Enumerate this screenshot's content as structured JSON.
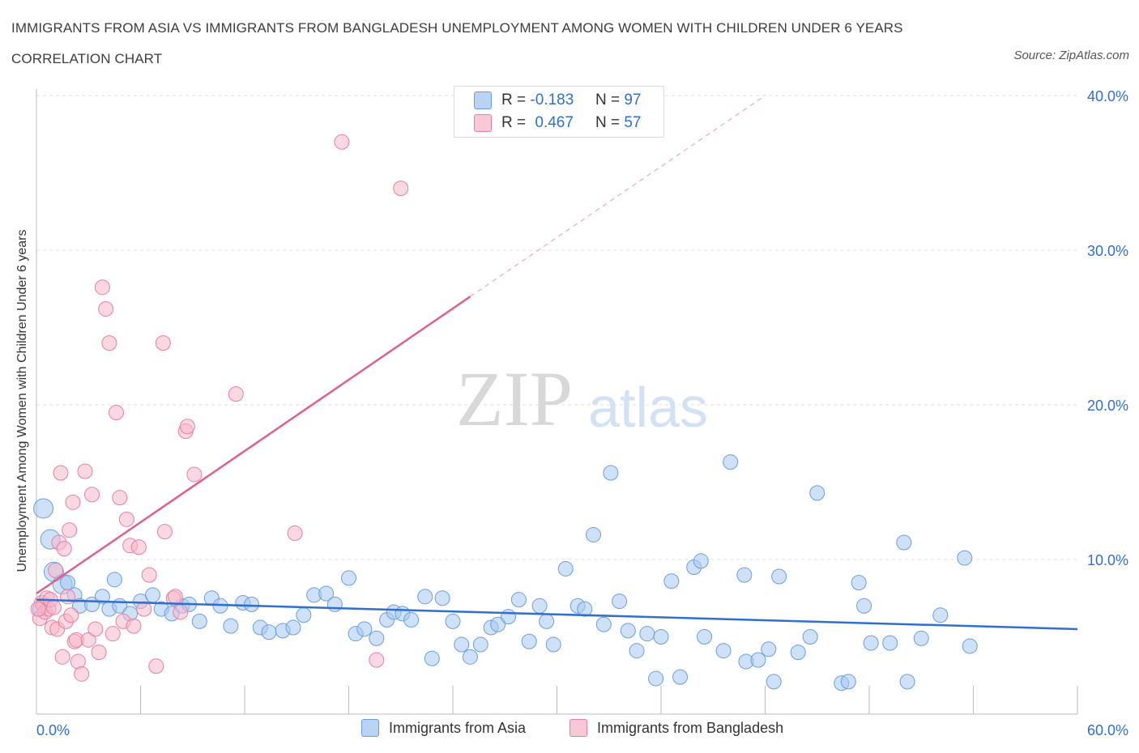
{
  "title": "IMMIGRANTS FROM ASIA VS IMMIGRANTS FROM BANGLADESH UNEMPLOYMENT AMONG WOMEN WITH CHILDREN UNDER 6 YEARS CORRELATION CHART",
  "source": "Source: ZipAtlas.com",
  "watermark": {
    "zip": "ZIP",
    "atlas": "atlas"
  },
  "legend_top": [
    {
      "r_label": "R =",
      "r_value": "-0.183",
      "n_label": "N =",
      "n_value": "97"
    },
    {
      "r_label": "R =",
      "r_value": "0.467",
      "n_label": "N =",
      "n_value": "57"
    }
  ],
  "chart_data": {
    "type": "scatter",
    "title": "IMMIGRANTS FROM ASIA VS IMMIGRANTS FROM BANGLADESH UNEMPLOYMENT AMONG WOMEN WITH CHILDREN UNDER 6 YEARS CORRELATION CHART",
    "xlabel": "",
    "ylabel": "Unemployment Among Women with Children Under 6 years",
    "xlim": [
      0,
      60
    ],
    "ylim": [
      0,
      40
    ],
    "x_tick_labels": [
      "0.0%",
      "60.0%"
    ],
    "y_tick_labels": [
      "10.0%",
      "20.0%",
      "30.0%",
      "40.0%"
    ],
    "y_ticks": [
      10,
      20,
      30,
      40
    ],
    "grid": true,
    "legend_position": "bottom",
    "series": [
      {
        "name": "Immigrants from Asia",
        "color": "#a8c8f0",
        "stroke": "#6a9ee0",
        "trend": {
          "x": [
            0,
            60
          ],
          "y": [
            7.4,
            5.5
          ],
          "color": "#2f6fd0"
        },
        "points": [
          [
            0.4,
            13.3
          ],
          [
            0.8,
            11.3
          ],
          [
            1.0,
            9.2
          ],
          [
            1.5,
            8.4
          ],
          [
            2.2,
            7.7
          ],
          [
            2.5,
            7.0
          ],
          [
            3.2,
            7.1
          ],
          [
            3.8,
            7.6
          ],
          [
            4.2,
            6.8
          ],
          [
            4.5,
            8.7
          ],
          [
            4.8,
            7.0
          ],
          [
            5.4,
            6.5
          ],
          [
            6.0,
            7.3
          ],
          [
            6.7,
            7.7
          ],
          [
            7.2,
            6.8
          ],
          [
            7.8,
            6.5
          ],
          [
            8.4,
            7.0
          ],
          [
            8.8,
            7.1
          ],
          [
            9.4,
            6.0
          ],
          [
            10.1,
            7.5
          ],
          [
            10.6,
            7.0
          ],
          [
            11.2,
            5.7
          ],
          [
            11.9,
            7.2
          ],
          [
            12.4,
            7.1
          ],
          [
            12.9,
            5.6
          ],
          [
            13.4,
            5.3
          ],
          [
            14.2,
            5.4
          ],
          [
            14.8,
            5.6
          ],
          [
            15.4,
            6.4
          ],
          [
            16.0,
            7.7
          ],
          [
            16.7,
            7.8
          ],
          [
            17.2,
            7.1
          ],
          [
            18.0,
            8.8
          ],
          [
            18.4,
            5.2
          ],
          [
            18.9,
            5.5
          ],
          [
            19.6,
            4.9
          ],
          [
            20.2,
            6.1
          ],
          [
            20.6,
            6.6
          ],
          [
            21.1,
            6.5
          ],
          [
            21.6,
            6.1
          ],
          [
            22.4,
            7.6
          ],
          [
            22.8,
            3.6
          ],
          [
            23.4,
            7.5
          ],
          [
            24.0,
            6.0
          ],
          [
            24.5,
            4.5
          ],
          [
            25.0,
            3.7
          ],
          [
            25.6,
            4.5
          ],
          [
            26.2,
            5.6
          ],
          [
            26.6,
            5.8
          ],
          [
            27.2,
            6.3
          ],
          [
            27.8,
            7.4
          ],
          [
            28.4,
            4.7
          ],
          [
            29.0,
            7.0
          ],
          [
            29.4,
            6.0
          ],
          [
            29.8,
            4.5
          ],
          [
            30.5,
            9.4
          ],
          [
            31.2,
            7.0
          ],
          [
            31.6,
            6.8
          ],
          [
            32.1,
            11.6
          ],
          [
            32.7,
            5.8
          ],
          [
            33.1,
            15.6
          ],
          [
            33.6,
            7.3
          ],
          [
            34.1,
            5.4
          ],
          [
            34.6,
            4.1
          ],
          [
            35.2,
            5.2
          ],
          [
            35.7,
            2.3
          ],
          [
            36.0,
            5.0
          ],
          [
            36.6,
            8.6
          ],
          [
            37.1,
            2.4
          ],
          [
            37.9,
            9.5
          ],
          [
            38.3,
            9.9
          ],
          [
            38.5,
            5.0
          ],
          [
            39.6,
            4.1
          ],
          [
            40.0,
            16.3
          ],
          [
            40.8,
            9.0
          ],
          [
            40.9,
            3.4
          ],
          [
            41.6,
            3.5
          ],
          [
            42.2,
            4.2
          ],
          [
            42.5,
            2.1
          ],
          [
            42.8,
            8.9
          ],
          [
            43.9,
            4.0
          ],
          [
            44.6,
            5.0
          ],
          [
            45.0,
            14.3
          ],
          [
            46.4,
            2.0
          ],
          [
            46.8,
            2.1
          ],
          [
            47.4,
            8.5
          ],
          [
            47.7,
            7.0
          ],
          [
            48.1,
            4.6
          ],
          [
            49.2,
            4.6
          ],
          [
            50.0,
            11.1
          ],
          [
            50.2,
            2.1
          ],
          [
            51.0,
            4.9
          ],
          [
            52.1,
            6.4
          ],
          [
            53.5,
            10.1
          ],
          [
            53.8,
            4.4
          ],
          [
            0.2,
            6.8
          ],
          [
            1.8,
            8.5
          ]
        ]
      },
      {
        "name": "Immigrants from Bangladesh",
        "color": "#f5b8cb",
        "stroke": "#e87fa0",
        "trend": {
          "x": [
            0,
            25.0
          ],
          "y": [
            7.8,
            27.0
          ],
          "color": "#e0608a"
        },
        "trend_dashed": {
          "x": [
            25.0,
            42.0
          ],
          "y": [
            27.0,
            40.0
          ]
        },
        "points": [
          [
            0.2,
            6.2
          ],
          [
            0.3,
            7.2
          ],
          [
            0.4,
            7.0
          ],
          [
            0.5,
            6.6
          ],
          [
            0.6,
            7.5
          ],
          [
            0.7,
            6.8
          ],
          [
            0.8,
            7.4
          ],
          [
            0.9,
            5.6
          ],
          [
            1.0,
            6.9
          ],
          [
            1.1,
            9.3
          ],
          [
            1.2,
            5.5
          ],
          [
            1.3,
            11.1
          ],
          [
            1.4,
            15.6
          ],
          [
            1.5,
            3.7
          ],
          [
            1.6,
            10.7
          ],
          [
            1.7,
            6.0
          ],
          [
            1.8,
            7.6
          ],
          [
            1.9,
            11.9
          ],
          [
            2.0,
            6.4
          ],
          [
            2.1,
            13.7
          ],
          [
            2.2,
            4.7
          ],
          [
            2.3,
            4.8
          ],
          [
            2.4,
            3.4
          ],
          [
            2.6,
            2.6
          ],
          [
            2.8,
            15.7
          ],
          [
            3.0,
            4.8
          ],
          [
            3.2,
            14.2
          ],
          [
            3.4,
            5.5
          ],
          [
            3.6,
            4.0
          ],
          [
            3.8,
            27.6
          ],
          [
            4.0,
            26.2
          ],
          [
            4.2,
            24.0
          ],
          [
            4.4,
            5.2
          ],
          [
            4.6,
            19.5
          ],
          [
            4.8,
            14.0
          ],
          [
            5.0,
            6.0
          ],
          [
            5.2,
            12.6
          ],
          [
            5.4,
            10.9
          ],
          [
            5.6,
            5.7
          ],
          [
            5.9,
            10.8
          ],
          [
            6.2,
            6.8
          ],
          [
            6.5,
            9.0
          ],
          [
            6.9,
            3.1
          ],
          [
            7.3,
            24.0
          ],
          [
            7.4,
            11.8
          ],
          [
            7.9,
            7.5
          ],
          [
            8.0,
            7.6
          ],
          [
            8.3,
            6.6
          ],
          [
            8.6,
            18.3
          ],
          [
            8.7,
            18.6
          ],
          [
            9.1,
            15.5
          ],
          [
            11.5,
            20.7
          ],
          [
            14.9,
            11.7
          ],
          [
            17.6,
            37.0
          ],
          [
            19.6,
            3.5
          ],
          [
            21.0,
            34.0
          ],
          [
            0.1,
            6.8
          ]
        ]
      }
    ]
  },
  "legend_bottom": [
    {
      "label": "Immigrants from Asia"
    },
    {
      "label": "Immigrants from Bangladesh"
    }
  ]
}
